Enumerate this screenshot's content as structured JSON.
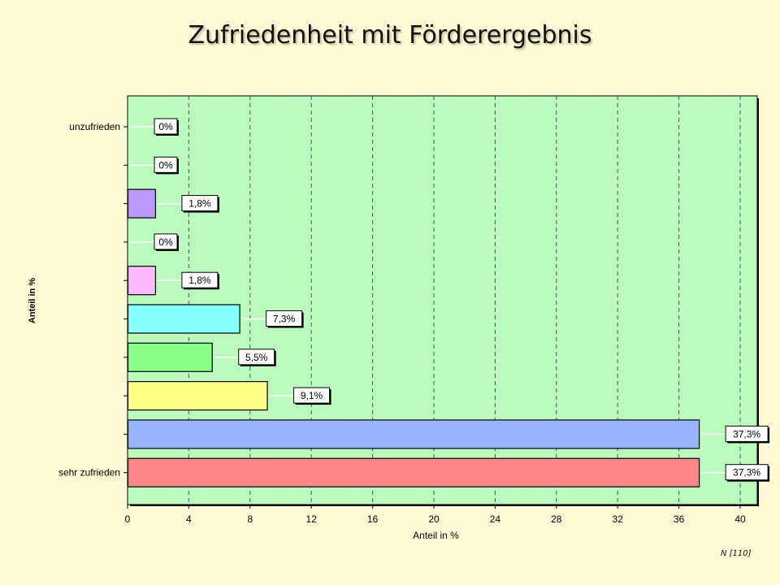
{
  "page": {
    "title": "Zufriedenheit mit Förderergebnis",
    "footnote": "N [110]",
    "background_color": "#fffbd6",
    "plot_background_color": "#bbfbbd"
  },
  "chart_data": {
    "type": "bar",
    "orientation": "horizontal",
    "title": "Zufriedenheit mit Förderergebnis",
    "xlabel": "Anteil in %",
    "ylabel": "Anteil in %",
    "xlim": [
      0,
      41
    ],
    "xticks": [
      0,
      4,
      8,
      12,
      16,
      20,
      24,
      28,
      32,
      36,
      40
    ],
    "grid": true,
    "categories": [
      "unzufrieden",
      "",
      "",
      "",
      "",
      "",
      "",
      "",
      "",
      "sehr zufrieden"
    ],
    "values": [
      0,
      0,
      1.8,
      0,
      1.8,
      7.3,
      5.5,
      9.1,
      37.3,
      37.3
    ],
    "labels": [
      "0%",
      "0%",
      "1,8%",
      "0%",
      "1,8%",
      "7,3%",
      "5,5%",
      "9,1%",
      "37,3%",
      "37,3%"
    ],
    "colors": [
      "#d8d8d8",
      "#d8d8d8",
      "#bb99ff",
      "#d8d8d8",
      "#ffbbff",
      "#88ffff",
      "#88ff88",
      "#ffff88",
      "#99b3ff",
      "#ff8888"
    ]
  }
}
